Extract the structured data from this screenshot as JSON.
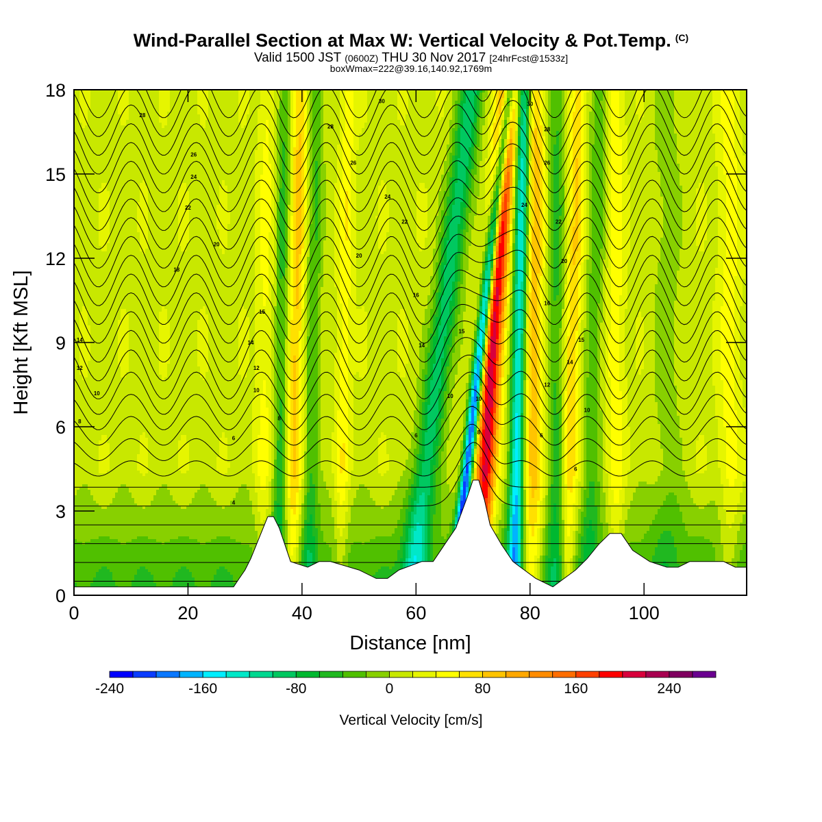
{
  "header": {
    "title": "Wind-Parallel Section at Max W: Vertical Velocity & Pot.Temp.",
    "title_suffix": "(C)",
    "valid_prefix": "Valid 1500 JST",
    "valid_utc": "(0600Z)",
    "valid_date": "THU 30 Nov 2017",
    "forecast": "[24hrFcst@1533z]",
    "box_info": "boxWmax=222@39.16,140.92,1769m"
  },
  "chart_data": {
    "type": "heatmap",
    "xlabel": "Distance [nm]",
    "ylabel": "Height [Kft MSL]",
    "xlim": [
      0,
      118
    ],
    "ylim": [
      0,
      18
    ],
    "x_ticks": [
      0,
      20,
      40,
      60,
      80,
      100
    ],
    "y_ticks": [
      0,
      3,
      6,
      9,
      12,
      15,
      18
    ],
    "colorbar": {
      "title": "Vertical Velocity [cm/s]",
      "min": -240,
      "max": 280,
      "step": 20,
      "tick_values": [
        -240,
        -160,
        -80,
        0,
        80,
        160,
        240
      ],
      "tick_labels": [
        "-240",
        "-160",
        "-80",
        "0",
        "80",
        "160",
        "240"
      ],
      "colors": [
        "#0000ff",
        "#0a3cff",
        "#0a78ff",
        "#00b4ff",
        "#00eeff",
        "#00e8c8",
        "#00d890",
        "#00c860",
        "#00b830",
        "#20b820",
        "#50c000",
        "#88d000",
        "#c8e800",
        "#e6f500",
        "#ffff00",
        "#ffe000",
        "#ffc400",
        "#ffa800",
        "#ff8c00",
        "#ff6e00",
        "#ff4000",
        "#ff0000",
        "#d8003c",
        "#a80050",
        "#800060",
        "#6a0090"
      ]
    },
    "terrain_profile": [
      [
        0,
        0.3
      ],
      [
        28,
        0.3
      ],
      [
        29,
        0.6
      ],
      [
        30,
        0.9
      ],
      [
        31,
        1.3
      ],
      [
        32,
        1.8
      ],
      [
        33,
        2.3
      ],
      [
        34,
        2.8
      ],
      [
        35,
        2.8
      ],
      [
        36,
        2.4
      ],
      [
        37,
        1.8
      ],
      [
        38,
        1.2
      ],
      [
        41,
        1.0
      ],
      [
        43,
        1.2
      ],
      [
        45,
        1.2
      ],
      [
        50,
        0.9
      ],
      [
        53,
        0.6
      ],
      [
        55,
        0.6
      ],
      [
        57,
        0.9
      ],
      [
        61,
        1.2
      ],
      [
        63,
        1.2
      ],
      [
        65,
        1.8
      ],
      [
        67,
        2.4
      ],
      [
        69,
        3.5
      ],
      [
        70,
        4.1
      ],
      [
        71,
        4.1
      ],
      [
        72,
        3.4
      ],
      [
        73,
        2.5
      ],
      [
        75,
        1.8
      ],
      [
        77,
        1.2
      ],
      [
        79,
        0.9
      ],
      [
        81,
        0.6
      ],
      [
        84,
        0.3
      ],
      [
        86,
        0.6
      ],
      [
        88,
        0.9
      ],
      [
        90,
        1.3
      ],
      [
        92,
        1.8
      ],
      [
        94,
        2.2
      ],
      [
        96,
        2.2
      ],
      [
        98,
        1.6
      ],
      [
        101,
        1.2
      ],
      [
        104,
        1.0
      ],
      [
        106,
        1.0
      ],
      [
        108,
        1.2
      ],
      [
        114,
        1.2
      ],
      [
        116,
        1.0
      ],
      [
        118,
        1.0
      ]
    ],
    "velocity_bands": [
      {
        "x": 33.5,
        "tilt": 0.05,
        "width": 1.4,
        "amp": 30
      },
      {
        "x": 36.5,
        "tilt": 0.06,
        "width": 1.2,
        "amp": -60
      },
      {
        "x": 39.0,
        "tilt": 0.08,
        "width": 1.4,
        "amp": 70
      },
      {
        "x": 42.0,
        "tilt": 0.08,
        "width": 1.3,
        "amp": -55
      },
      {
        "x": 47.5,
        "tilt": 0.08,
        "width": 1.2,
        "amp": 40
      },
      {
        "x": 65.0,
        "tilt": 0.6,
        "width": 2.2,
        "amp": -110
      },
      {
        "x": 72.0,
        "tilt": 0.55,
        "width": 1.0,
        "amp": -230
      },
      {
        "x": 73.8,
        "tilt": 0.3,
        "width": 1.8,
        "amp": 200
      },
      {
        "x": 78.2,
        "tilt": 0.1,
        "width": 1.3,
        "amp": -165
      },
      {
        "x": 80.6,
        "tilt": 0.03,
        "width": 1.8,
        "amp": 80
      },
      {
        "x": 84.6,
        "tilt": 0.01,
        "width": 1.5,
        "amp": -60
      },
      {
        "x": 87.6,
        "tilt": 0.12,
        "width": 1.4,
        "amp": 65
      },
      {
        "x": 91.3,
        "tilt": 0.1,
        "width": 1.5,
        "amp": -50
      },
      {
        "x": 95.0,
        "tilt": 0.0,
        "width": 1.5,
        "amp": 40
      },
      {
        "x": 104.0,
        "tilt": 0.0,
        "width": 2.5,
        "amp": -25
      },
      {
        "x": 115.0,
        "tilt": 0.0,
        "width": 1.8,
        "amp": 35
      }
    ],
    "theta_contours": {
      "min": 4,
      "max": 30,
      "interval": 1,
      "labels": [
        {
          "text": "30",
          "x": 54,
          "y": 17.6
        },
        {
          "text": "30",
          "x": 80,
          "y": 17.5
        },
        {
          "text": "28",
          "x": 12,
          "y": 17.1
        },
        {
          "text": "28",
          "x": 45,
          "y": 16.7
        },
        {
          "text": "28",
          "x": 83,
          "y": 16.6
        },
        {
          "text": "26",
          "x": 21,
          "y": 15.7
        },
        {
          "text": "26",
          "x": 49,
          "y": 15.4
        },
        {
          "text": "26",
          "x": 83,
          "y": 15.4
        },
        {
          "text": "24",
          "x": 21,
          "y": 14.9
        },
        {
          "text": "24",
          "x": 55,
          "y": 14.2
        },
        {
          "text": "24",
          "x": 79,
          "y": 13.9
        },
        {
          "text": "22",
          "x": 20,
          "y": 13.8
        },
        {
          "text": "22",
          "x": 58,
          "y": 13.3
        },
        {
          "text": "22",
          "x": 85,
          "y": 13.3
        },
        {
          "text": "20",
          "x": 25,
          "y": 12.5
        },
        {
          "text": "20",
          "x": 50,
          "y": 12.1
        },
        {
          "text": "20",
          "x": 86,
          "y": 11.9
        },
        {
          "text": "18",
          "x": 18,
          "y": 11.6
        },
        {
          "text": "16",
          "x": 60,
          "y": 10.7
        },
        {
          "text": "16",
          "x": 83,
          "y": 10.4
        },
        {
          "text": "15",
          "x": 33,
          "y": 10.1
        },
        {
          "text": "15",
          "x": 68,
          "y": 9.4
        },
        {
          "text": "15",
          "x": 89,
          "y": 9.1
        },
        {
          "text": "14",
          "x": 1,
          "y": 9.1
        },
        {
          "text": "14",
          "x": 31,
          "y": 9.0
        },
        {
          "text": "14",
          "x": 61,
          "y": 8.9
        },
        {
          "text": "14",
          "x": 87,
          "y": 8.3
        },
        {
          "text": "12",
          "x": 1,
          "y": 8.1
        },
        {
          "text": "12",
          "x": 32,
          "y": 8.1
        },
        {
          "text": "12",
          "x": 83,
          "y": 7.5
        },
        {
          "text": "10",
          "x": 4,
          "y": 7.2
        },
        {
          "text": "10",
          "x": 32,
          "y": 7.3
        },
        {
          "text": "10",
          "x": 66,
          "y": 7.1
        },
        {
          "text": "10",
          "x": 71,
          "y": 7.0
        },
        {
          "text": "10",
          "x": 90,
          "y": 6.6
        },
        {
          "text": "8",
          "x": 1,
          "y": 6.2
        },
        {
          "text": "8",
          "x": 36,
          "y": 6.3
        },
        {
          "text": "8",
          "x": 71,
          "y": 5.8
        },
        {
          "text": "6",
          "x": 28,
          "y": 5.6
        },
        {
          "text": "6",
          "x": 60,
          "y": 5.7
        },
        {
          "text": "6",
          "x": 82,
          "y": 5.7
        },
        {
          "text": "6",
          "x": 88,
          "y": 4.5
        },
        {
          "text": "4",
          "x": 28,
          "y": 3.3
        }
      ]
    }
  }
}
